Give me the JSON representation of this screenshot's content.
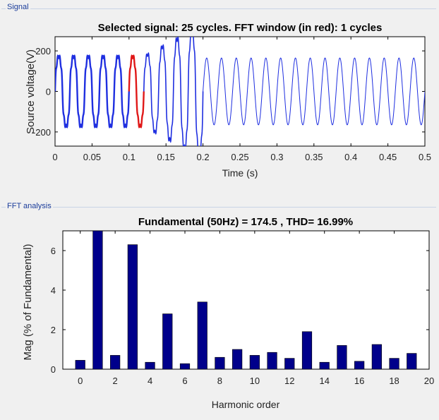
{
  "signal_panel": {
    "label": "Signal",
    "title": "Selected signal: 25 cycles. FFT window (in red): 1 cycles",
    "xlabel": "Time (s)",
    "ylabel": "Source voltage(V)",
    "xticks": [
      "0",
      "0.05",
      "0.1",
      "0.15",
      "0.2",
      "0.25",
      "0.3",
      "0.35",
      "0.4",
      "0.45",
      "0.5"
    ],
    "yticks": [
      "200",
      "0",
      "-200"
    ]
  },
  "fft_panel": {
    "label": "FFT analysis",
    "title": "Fundamental (50Hz) = 174.5 , THD= 16.99%",
    "xlabel": "Harmonic order",
    "ylabel": "Mag (% of Fundamental)",
    "xticks": [
      "0",
      "2",
      "4",
      "6",
      "8",
      "10",
      "12",
      "14",
      "16",
      "18",
      "20"
    ],
    "yticks": [
      "0",
      "2",
      "4",
      "6"
    ]
  },
  "colors": {
    "signal_line": "#1f2fe0",
    "fft_window": "#e01818",
    "bar": "#00008b"
  },
  "chart_data": [
    {
      "type": "line",
      "title": "Selected signal: 25 cycles. FFT window (in red): 1 cycles",
      "xlabel": "Time (s)",
      "ylabel": "Source voltage(V)",
      "xlim": [
        0,
        0.5
      ],
      "ylim": [
        -270,
        270
      ],
      "frequency_hz": 50,
      "steady_amplitude": 165,
      "fft_window": [
        0.1,
        0.12
      ],
      "legend": "none"
    },
    {
      "type": "bar",
      "title": "Fundamental (50Hz) = 174.5 , THD= 16.99%",
      "xlabel": "Harmonic order",
      "ylabel": "Mag (% of Fundamental)",
      "xlim": [
        -1,
        20
      ],
      "ylim": [
        0,
        7
      ],
      "categories": [
        0,
        1,
        2,
        3,
        4,
        5,
        6,
        7,
        8,
        9,
        10,
        11,
        12,
        13,
        14,
        15,
        16,
        17,
        18,
        19
      ],
      "values": [
        0.45,
        7.0,
        0.7,
        6.3,
        0.35,
        2.8,
        0.28,
        3.4,
        0.6,
        1.0,
        0.7,
        0.85,
        0.55,
        1.9,
        0.35,
        1.2,
        0.4,
        1.25,
        0.55,
        0.8
      ]
    }
  ]
}
